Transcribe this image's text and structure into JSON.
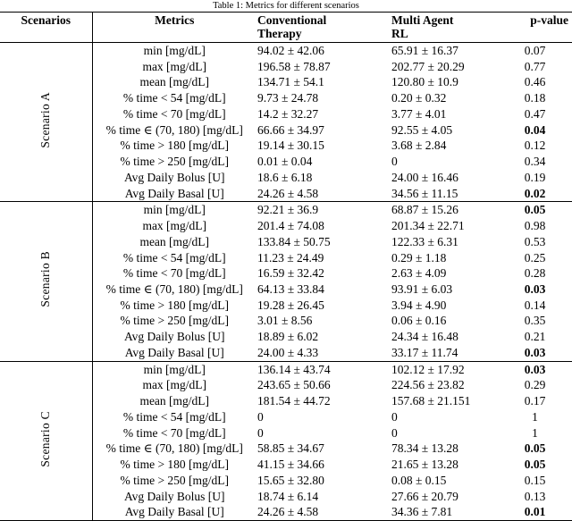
{
  "caption": "Table 1: Metrics for different scenarios",
  "table": {
    "headers": {
      "scenarios": "Scenarios",
      "metrics": "Metrics",
      "conventional": [
        "Conventional",
        "Therapy"
      ],
      "multi_agent": [
        "Multi Agent",
        "RL"
      ],
      "p_value": "p-value"
    },
    "scenarios": [
      {
        "label": "Scenario A",
        "rows": [
          {
            "metric": "min [mg/dL]",
            "conventional": "94.02 ± 42.06",
            "multi_agent": "65.91 ± 16.37",
            "p_value": "0.07",
            "p_bold": false
          },
          {
            "metric": "max [mg/dL]",
            "conventional": "196.58 ± 78.87",
            "multi_agent": "202.77 ± 20.29",
            "p_value": "0.77",
            "p_bold": false
          },
          {
            "metric": "mean [mg/dL]",
            "conventional": "134.71 ± 54.1",
            "multi_agent": "120.80 ± 10.9",
            "p_value": "0.46",
            "p_bold": false
          },
          {
            "metric": "% time < 54 [mg/dL]",
            "conventional": "9.73 ± 24.78",
            "multi_agent": "0.20 ± 0.32",
            "p_value": "0.18",
            "p_bold": false
          },
          {
            "metric": "% time < 70 [mg/dL]",
            "conventional": "14.2 ± 32.27",
            "multi_agent": "3.77 ± 4.01",
            "p_value": "0.47",
            "p_bold": false
          },
          {
            "metric": "% time ∈ (70, 180) [mg/dL]",
            "conventional": "66.66 ± 34.97",
            "multi_agent": "92.55 ± 4.05",
            "p_value": "0.04",
            "p_bold": true
          },
          {
            "metric": "% time > 180 [mg/dL]",
            "conventional": "19.14 ± 30.15",
            "multi_agent": "3.68 ± 2.84",
            "p_value": "0.12",
            "p_bold": false
          },
          {
            "metric": "% time > 250 [mg/dL]",
            "conventional": "0.01 ± 0.04",
            "multi_agent": "0",
            "p_value": "0.34",
            "p_bold": false
          },
          {
            "metric": "Avg Daily Bolus [U]",
            "conventional": "18.6 ± 6.18",
            "multi_agent": "24.00 ± 16.46",
            "p_value": "0.19",
            "p_bold": false
          },
          {
            "metric": "Avg Daily Basal [U]",
            "conventional": "24.26 ± 4.58",
            "multi_agent": "34.56 ± 11.15",
            "p_value": "0.02",
            "p_bold": true
          }
        ]
      },
      {
        "label": "Scenario B",
        "rows": [
          {
            "metric": "min [mg/dL]",
            "conventional": "92.21 ± 36.9",
            "multi_agent": "68.87 ± 15.26",
            "p_value": "0.05",
            "p_bold": true
          },
          {
            "metric": "max [mg/dL]",
            "conventional": "201.4 ± 74.08",
            "multi_agent": "201.34 ± 22.71",
            "p_value": "0.98",
            "p_bold": false
          },
          {
            "metric": "mean [mg/dL]",
            "conventional": "133.84 ± 50.75",
            "multi_agent": "122.33 ± 6.31",
            "p_value": "0.53",
            "p_bold": false
          },
          {
            "metric": "% time < 54 [mg/dL]",
            "conventional": "11.23 ± 24.49",
            "multi_agent": "0.29 ± 1.18",
            "p_value": "0.25",
            "p_bold": false
          },
          {
            "metric": "% time < 70 [mg/dL]",
            "conventional": "16.59 ± 32.42",
            "multi_agent": "2.63 ± 4.09",
            "p_value": "0.28",
            "p_bold": false
          },
          {
            "metric": "% time ∈ (70, 180) [mg/dL]",
            "conventional": "64.13 ± 33.84",
            "multi_agent": "93.91 ± 6.03",
            "p_value": "0.03",
            "p_bold": true
          },
          {
            "metric": "% time > 180 [mg/dL]",
            "conventional": "19.28 ± 26.45",
            "multi_agent": "3.94 ± 4.90",
            "p_value": "0.14",
            "p_bold": false
          },
          {
            "metric": "% time > 250 [mg/dL]",
            "conventional": "3.01 ± 8.56",
            "multi_agent": "0.06 ± 0.16",
            "p_value": "0.35",
            "p_bold": false
          },
          {
            "metric": "Avg Daily Bolus [U]",
            "conventional": "18.89 ± 6.02",
            "multi_agent": "24.34 ± 16.48",
            "p_value": "0.21",
            "p_bold": false
          },
          {
            "metric": "Avg Daily Basal [U]",
            "conventional": "24.00 ± 4.33",
            "multi_agent": "33.17 ± 11.74",
            "p_value": "0.03",
            "p_bold": true
          }
        ]
      },
      {
        "label": "Scenario C",
        "rows": [
          {
            "metric": "min [mg/dL]",
            "conventional": "136.14 ± 43.74",
            "multi_agent": "102.12 ± 17.92",
            "p_value": "0.03",
            "p_bold": true
          },
          {
            "metric": "max [mg/dL]",
            "conventional": "243.65 ± 50.66",
            "multi_agent": "224.56 ± 23.82",
            "p_value": "0.29",
            "p_bold": false
          },
          {
            "metric": "mean [mg/dL]",
            "conventional": "181.54 ± 44.72",
            "multi_agent": "157.68 ± 21.151",
            "p_value": "0.17",
            "p_bold": false
          },
          {
            "metric": "% time < 54 [mg/dL]",
            "conventional": "0",
            "multi_agent": "0",
            "p_value": "1",
            "p_bold": false
          },
          {
            "metric": "% time < 70 [mg/dL]",
            "conventional": "0",
            "multi_agent": "0",
            "p_value": "1",
            "p_bold": false
          },
          {
            "metric": "% time ∈ (70, 180) [mg/dL]",
            "conventional": "58.85 ± 34.67",
            "multi_agent": "78.34 ± 13.28",
            "p_value": "0.05",
            "p_bold": true
          },
          {
            "metric": "% time > 180 [mg/dL]",
            "conventional": "41.15 ± 34.66",
            "multi_agent": "21.65 ± 13.28",
            "p_value": "0.05",
            "p_bold": true
          },
          {
            "metric": "% time > 250 [mg/dL]",
            "conventional": "15.65 ± 32.80",
            "multi_agent": "0.08 ± 0.15",
            "p_value": "0.15",
            "p_bold": false
          },
          {
            "metric": "Avg Daily Bolus [U]",
            "conventional": "18.74 ± 6.14",
            "multi_agent": "27.66 ± 20.79",
            "p_value": "0.13",
            "p_bold": false
          },
          {
            "metric": "Avg Daily Basal [U]",
            "conventional": "24.26 ± 4.58",
            "multi_agent": "34.36 ± 7.81",
            "p_value": "0.01",
            "p_bold": true
          }
        ]
      }
    ]
  }
}
